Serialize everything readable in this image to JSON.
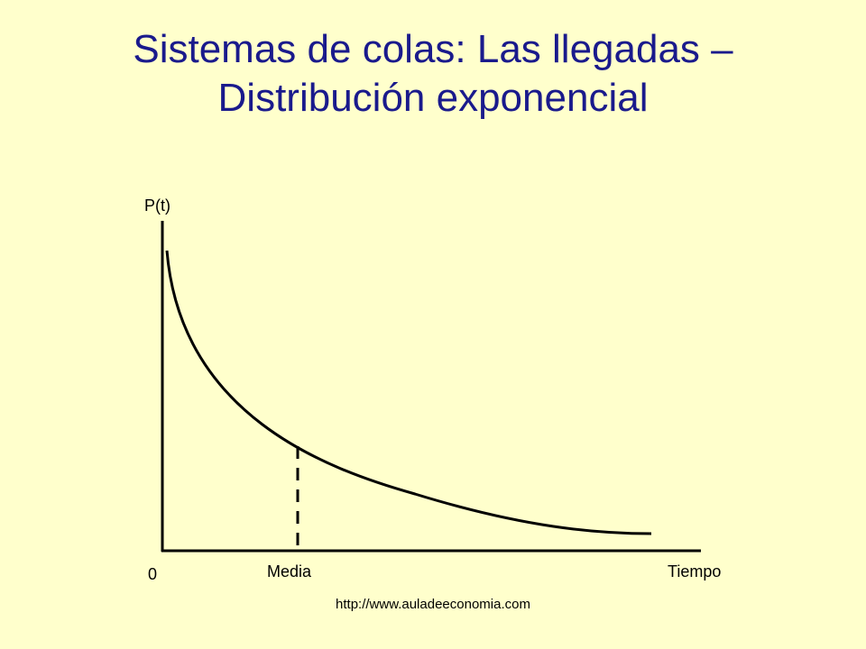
{
  "slide": {
    "title_line1": "Sistemas de colas: Las llegadas –",
    "title_line2": "Distribución exponencial",
    "footer_url": "http://www.auladeeconomia.com"
  },
  "diagram": {
    "y_axis_label": "P(t)",
    "x_axis_label": "Tiempo",
    "origin_label": "0",
    "mean_label": "Media",
    "curve": "exponential decay",
    "mean_marker": "dashed vertical line"
  },
  "colors": {
    "background": "#FFFFCC",
    "title": "#1A1A8C",
    "lines": "#000000"
  }
}
